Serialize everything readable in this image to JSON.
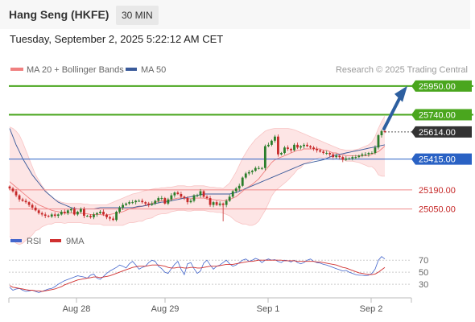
{
  "header": {
    "symbol": "Hang Seng (HKFE)",
    "timeframe": "30 MIN"
  },
  "timestamp": "Tuesday, September 2, 2025 5:22:12 AM CET",
  "legend": {
    "ma20": "MA 20 + Bollinger Bands",
    "ma50": "MA 50",
    "credit": "Research © 2025 Trading Central"
  },
  "rsi_legend": {
    "rsi": "RSI",
    "ma": "9MA"
  },
  "colors": {
    "up": "#2a7d2a",
    "down": "#c62828",
    "ma20": "#f08080",
    "ma50": "#3a5a9a",
    "green_level": "#4aa61e",
    "pivot": "#2a62c4",
    "support": "#f08a8a",
    "current": "#333333",
    "arrow": "#2d5fa0",
    "rsi": "#4466cc",
    "rsi_ma": "#d03030"
  },
  "chart_data": [
    {
      "type": "candlestick",
      "title": "Hang Seng (HKFE)",
      "timeframe": "30 MIN",
      "x_ticks": [
        "Aug 28",
        "Aug 29",
        "Sep 1",
        "Sep 2"
      ],
      "ylim": [
        24930,
        26020
      ],
      "grid": false,
      "levels": [
        {
          "value": 25950,
          "label": "25950.00",
          "kind": "resistance"
        },
        {
          "value": 25740,
          "label": "25740.00",
          "kind": "resistance"
        },
        {
          "value": 25614,
          "label": "25614.00",
          "kind": "current"
        },
        {
          "value": 25415,
          "label": "25415.00",
          "kind": "pivot"
        },
        {
          "value": 25190,
          "label": "25190.00",
          "kind": "support"
        },
        {
          "value": 25050,
          "label": "25050.00",
          "kind": "support"
        }
      ],
      "close": [
        25200,
        25180,
        25150,
        25120,
        25110,
        25100,
        25080,
        25060,
        25040,
        25020,
        25010,
        25000,
        24995,
        25010,
        25000,
        25010,
        25030,
        25020,
        25040,
        25050,
        25010,
        25030,
        25050,
        25000,
        25000,
        24990,
        25010,
        25020,
        25030,
        25010,
        24990,
        24980,
        24970,
        25030,
        25060,
        25080,
        25090,
        25100,
        25100,
        25110,
        25110,
        25100,
        25090,
        25080,
        25090,
        25110,
        25130,
        25130,
        25090,
        25120,
        25150,
        25170,
        25160,
        25140,
        25130,
        25100,
        25110,
        25150,
        25150,
        25180,
        25140,
        25130,
        25080,
        25100,
        25080,
        25090,
        25080,
        25110,
        25140,
        25180,
        25200,
        25220,
        25280,
        25310,
        25320,
        25330,
        25350,
        25350,
        25350,
        25510,
        25520,
        25550,
        25580,
        25450,
        25460,
        25500,
        25490,
        25480,
        25520,
        25500,
        25510,
        25520,
        25510,
        25500,
        25490,
        25480,
        25470,
        25460,
        25460,
        25450,
        25430,
        25440,
        25430,
        25410,
        25420,
        25420,
        25430,
        25430,
        25440,
        25450,
        25450,
        25460,
        25460,
        25500,
        25590,
        25620,
        25614
      ],
      "ma20": [
        25250,
        25230,
        25210,
        25190,
        25170,
        25150,
        25130,
        25110,
        25095,
        25080,
        25070,
        25060,
        25050,
        25040,
        25035,
        25030,
        25025,
        25020,
        25020,
        25020,
        25020,
        25020,
        25020,
        25015,
        25015,
        25010,
        25010,
        25010,
        25010,
        25005,
        25005,
        25010,
        25015,
        25020,
        25025,
        25030,
        25040,
        25050,
        25055,
        25060,
        25065,
        25070,
        25080,
        25085,
        25090,
        25100,
        25105,
        25110,
        25110,
        25115,
        25120,
        25125,
        25130,
        25130,
        25130,
        25125,
        25125,
        25130,
        25130,
        25130,
        25130,
        25125,
        25120,
        25120,
        25115,
        25115,
        25110,
        25115,
        25120,
        25130,
        25140,
        25160,
        25180,
        25200,
        25215,
        25230,
        25250,
        25270,
        25300,
        25330,
        25360,
        25390,
        25410,
        25420,
        25430,
        25440,
        25450,
        25460,
        25470,
        25480,
        25480,
        25490,
        25490,
        25490,
        25490,
        25490,
        25490,
        25480,
        25480,
        25470,
        25460,
        25460,
        25450,
        25450,
        25440,
        25440,
        25440,
        25440,
        25440,
        25440,
        25440,
        25440,
        25450,
        25460,
        25470,
        25490,
        25510
      ],
      "ma50": [
        25640,
        25580,
        25520,
        25470,
        25420,
        25380,
        25340,
        25300,
        25270,
        25240,
        25210,
        25180,
        25160,
        25140,
        25120,
        25100,
        25090,
        25080,
        25070,
        25060,
        25055,
        25050,
        25050,
        25050,
        25050,
        25050,
        25050,
        25055,
        25060,
        25060,
        25060,
        25060,
        25060,
        25060,
        25060,
        25060,
        25060,
        25060,
        25060,
        25065,
        25070,
        25070,
        25075,
        25080,
        25085,
        25090,
        25095,
        25100,
        25100,
        25105,
        25110,
        25115,
        25120,
        25125,
        25130,
        25135,
        25140,
        25145,
        25150,
        25155,
        25160,
        25160,
        25160,
        25160,
        25160,
        25160,
        25160,
        25160,
        25160,
        25165,
        25170,
        25180,
        25190,
        25200,
        25210,
        25220,
        25230,
        25240,
        25250,
        25260,
        25270,
        25280,
        25290,
        25300,
        25310,
        25320,
        25330,
        25340,
        25350,
        25360,
        25370,
        25380,
        25385,
        25390,
        25395,
        25400,
        25405,
        25410,
        25420,
        25430,
        25440,
        25445,
        25450,
        25455,
        25460,
        25465,
        25470,
        25475,
        25480,
        25485,
        25490,
        25495,
        25500,
        25505,
        25510,
        25515,
        25520
      ],
      "bb_upper": [
        25650,
        25640,
        25620,
        25590,
        25540,
        25480,
        25420,
        25360,
        25300,
        25260,
        25220,
        25190,
        25160,
        25140,
        25120,
        25110,
        25100,
        25095,
        25090,
        25090,
        25090,
        25090,
        25090,
        25085,
        25085,
        25080,
        25080,
        25080,
        25080,
        25080,
        25080,
        25090,
        25100,
        25110,
        25120,
        25130,
        25140,
        25150,
        25160,
        25165,
        25170,
        25180,
        25185,
        25190,
        25195,
        25200,
        25200,
        25205,
        25205,
        25210,
        25210,
        25215,
        25220,
        25220,
        25220,
        25215,
        25215,
        25220,
        25220,
        25220,
        25220,
        25215,
        25210,
        25210,
        25205,
        25205,
        25200,
        25220,
        25240,
        25280,
        25320,
        25370,
        25420,
        25460,
        25500,
        25530,
        25560,
        25580,
        25600,
        25620,
        25630,
        25635,
        25640,
        25640,
        25640,
        25640,
        25640,
        25635,
        25630,
        25620,
        25610,
        25600,
        25590,
        25580,
        25570,
        25560,
        25550,
        25540,
        25530,
        25520,
        25510,
        25500,
        25490,
        25485,
        25480,
        25480,
        25480,
        25485,
        25490,
        25500,
        25510,
        25520,
        25540,
        25580,
        25640,
        25690,
        25730
      ],
      "bb_lower": [
        24850,
        24820,
        24800,
        24790,
        24800,
        24820,
        24840,
        24860,
        24890,
        24900,
        24920,
        24930,
        24940,
        24940,
        24950,
        24950,
        24950,
        24945,
        24950,
        24950,
        24950,
        24950,
        24950,
        24945,
        24945,
        24940,
        24940,
        24940,
        24940,
        24930,
        24930,
        24930,
        24930,
        24930,
        24930,
        24930,
        24940,
        24950,
        24950,
        24955,
        24960,
        24960,
        24975,
        24980,
        24985,
        25000,
        25010,
        25015,
        25015,
        25020,
        25030,
        25035,
        25040,
        25040,
        25040,
        25035,
        25035,
        25040,
        25040,
        25040,
        25040,
        25035,
        25030,
        25030,
        25025,
        25025,
        25020,
        25010,
        25000,
        24980,
        24960,
        24950,
        24940,
        24940,
        24930,
        24930,
        24940,
        24960,
        25000,
        25040,
        25090,
        25145,
        25180,
        25200,
        25220,
        25240,
        25260,
        25285,
        25310,
        25340,
        25350,
        25380,
        25390,
        25400,
        25410,
        25420,
        25430,
        25420,
        25430,
        25420,
        25410,
        25420,
        25410,
        25415,
        25400,
        25400,
        25400,
        25395,
        25390,
        25380,
        25370,
        25360,
        25360,
        25340,
        25300,
        25290,
        25290
      ],
      "series": [
        {
          "name": "MA 20 + Bollinger Bands"
        },
        {
          "name": "MA 50"
        }
      ]
    },
    {
      "type": "line",
      "title": "RSI",
      "x_ticks": [
        "Aug 28",
        "Aug 29",
        "Sep 1",
        "Sep 2"
      ],
      "ylim": [
        10,
        85
      ],
      "y_ticks": [
        70,
        50,
        30
      ],
      "series": [
        {
          "name": "RSI",
          "values": [
            25,
            20,
            22,
            23,
            20,
            18,
            19,
            20,
            18,
            16,
            18,
            20,
            22,
            23,
            26,
            30,
            33,
            36,
            38,
            40,
            42,
            44,
            43,
            42,
            40,
            45,
            47,
            40,
            38,
            43,
            48,
            52,
            55,
            58,
            62,
            60,
            57,
            64,
            68,
            62,
            55,
            58,
            60,
            66,
            70,
            68,
            60,
            56,
            50,
            48,
            56,
            63,
            68,
            55,
            46,
            64,
            66,
            56,
            48,
            52,
            65,
            70,
            62,
            55,
            60,
            62,
            66,
            70,
            64,
            60,
            62,
            66,
            70,
            72,
            68,
            70,
            73,
            71,
            66,
            70,
            72,
            70,
            71,
            68,
            66,
            70,
            69,
            67,
            70,
            66,
            64,
            66,
            70,
            72,
            68,
            66,
            65,
            63,
            62,
            60,
            58,
            56,
            54,
            52,
            53,
            50,
            48,
            46,
            45,
            45,
            44,
            45,
            48,
            55,
            70,
            76,
            72
          ]
        },
        {
          "name": "9MA",
          "values": [
            28,
            25,
            24,
            23,
            22,
            21,
            20,
            20,
            19,
            19,
            18,
            19,
            20,
            21,
            22,
            24,
            26,
            29,
            31,
            33,
            35,
            37,
            38,
            39,
            40,
            41,
            42,
            42,
            41,
            42,
            43,
            44,
            46,
            48,
            50,
            52,
            54,
            56,
            58,
            59,
            60,
            60,
            60,
            61,
            62,
            62,
            62,
            61,
            60,
            58,
            57,
            57,
            58,
            58,
            57,
            57,
            58,
            58,
            57,
            57,
            58,
            59,
            60,
            60,
            60,
            61,
            62,
            63,
            63,
            63,
            64,
            65,
            66,
            67,
            68,
            68,
            69,
            70,
            70,
            70,
            70,
            70,
            70,
            70,
            70,
            69,
            69,
            69,
            69,
            68,
            68,
            68,
            68,
            68,
            68,
            67,
            67,
            66,
            65,
            64,
            63,
            62,
            60,
            58,
            57,
            55,
            53,
            51,
            49,
            48,
            47,
            46,
            46,
            47,
            50,
            54,
            58
          ]
        }
      ]
    }
  ]
}
